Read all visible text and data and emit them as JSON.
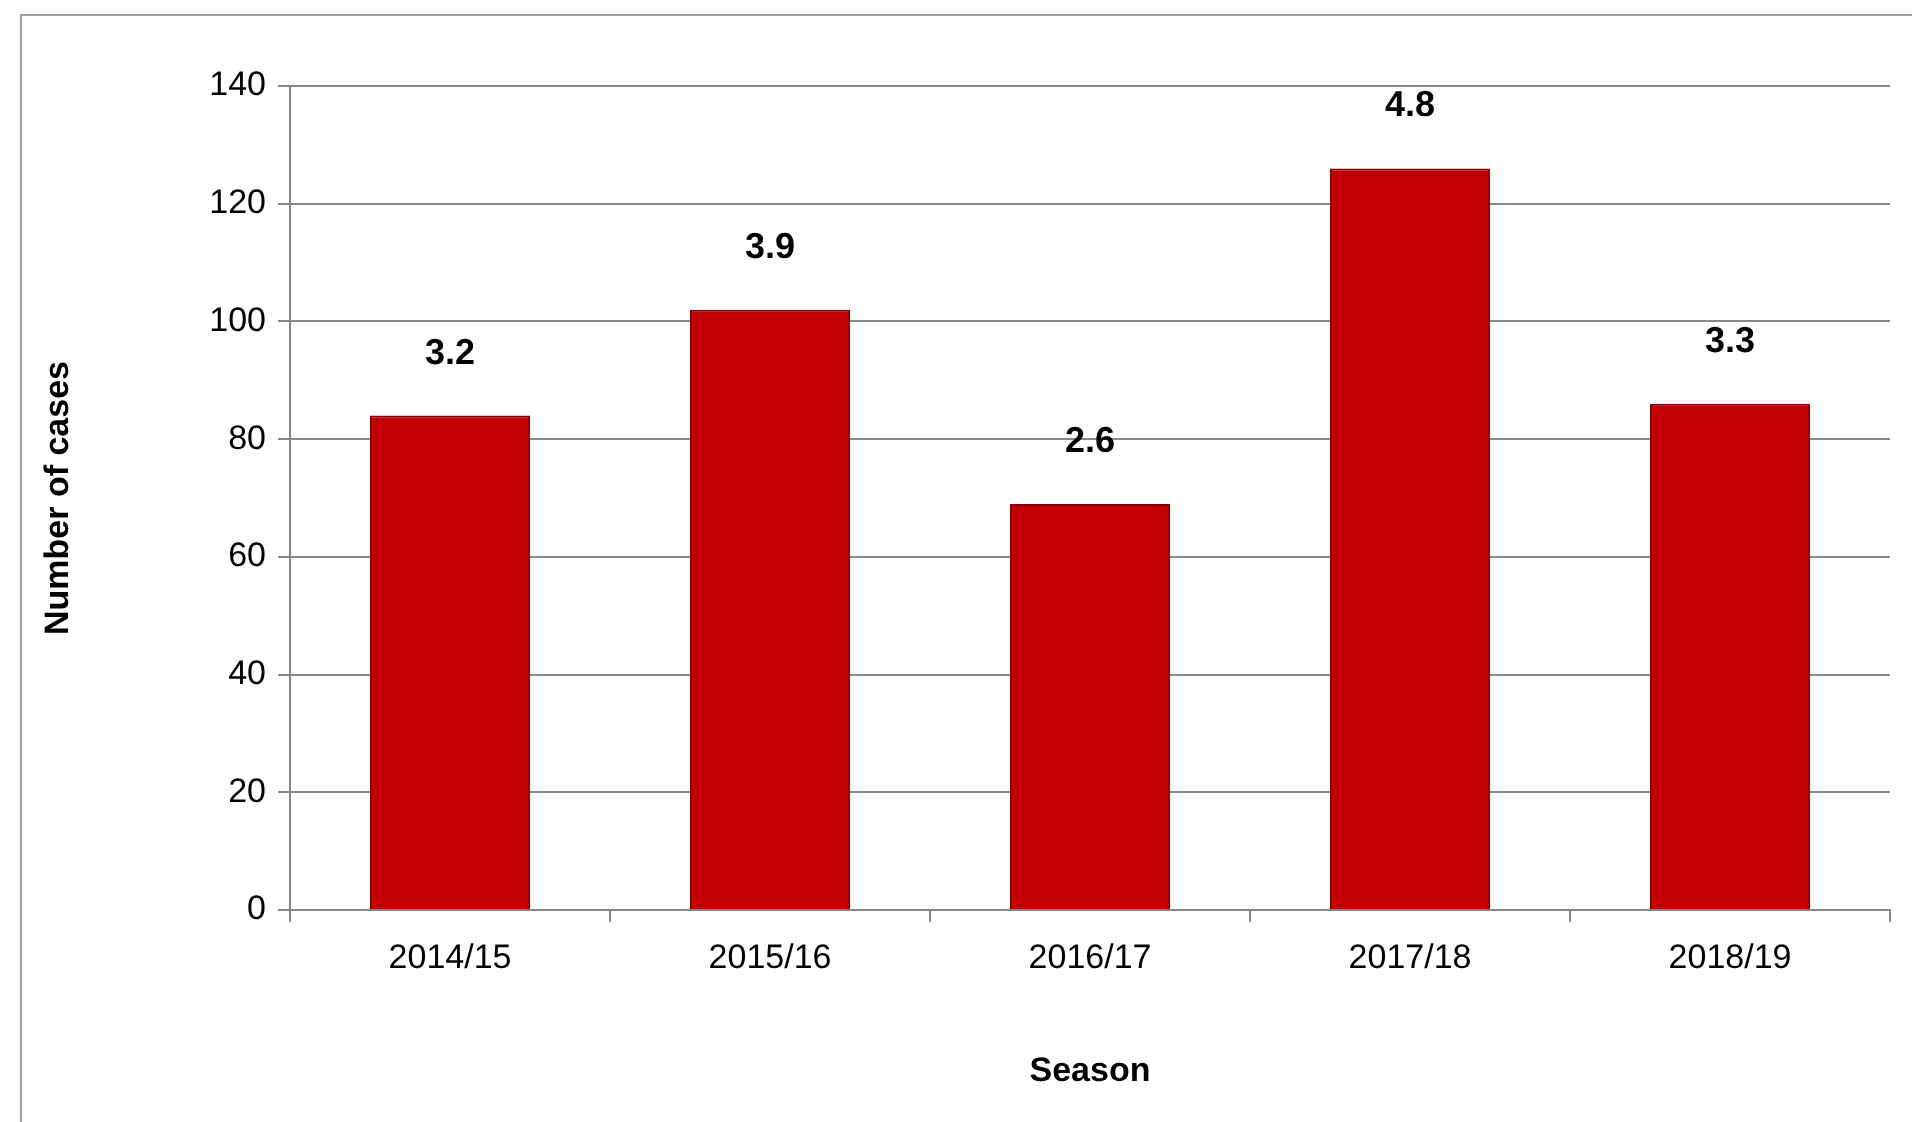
{
  "chart_data": {
    "type": "bar",
    "xlabel": "Season",
    "ylabel": "Number of cases",
    "categories": [
      "2014/15",
      "2015/16",
      "2016/17",
      "2017/18",
      "2018/19"
    ],
    "values": [
      84,
      102,
      69,
      126,
      86
    ],
    "annotations": [
      "3.2",
      "3.9",
      "2.6",
      "4.8",
      "3.3"
    ],
    "color": "#c00000",
    "ylim": [
      0,
      140
    ],
    "yticks": [
      0,
      20,
      40,
      60,
      80,
      100,
      120,
      140
    ],
    "grid": "y",
    "legend": false
  }
}
